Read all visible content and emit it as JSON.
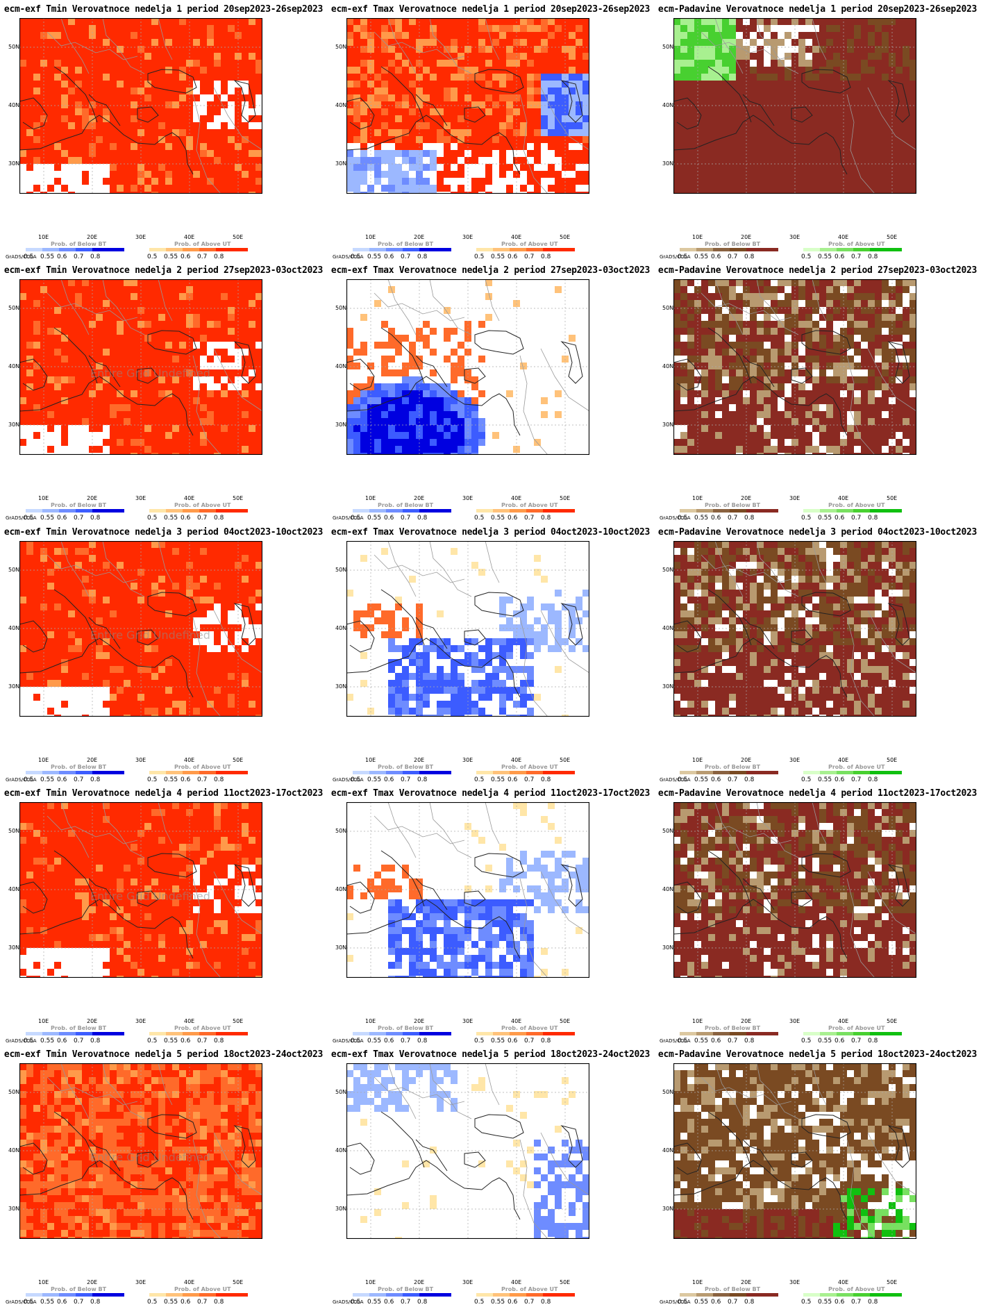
{
  "panels": [
    [
      {
        "title": "ecm-exf Tmin Verovatnoce nedelja 1 period 20sep2023-26sep2023",
        "variable": "tmin",
        "field": "warm",
        "undefined_note": ""
      },
      {
        "title": "ecm-exf Tmax Verovatnoce nedelja 1 period 20sep2023-26sep2023",
        "variable": "tmax",
        "field": "warm-mixed",
        "undefined_note": ""
      },
      {
        "title": "ecm-Padavine Verovatnoce nedelja 1 period 20sep2023-26sep2023",
        "variable": "precip",
        "field": "dry-wet-north",
        "undefined_note": ""
      }
    ],
    [
      {
        "title": "ecm-exf Tmin Verovatnoce nedelja 2 period 27sep2023-03oct2023",
        "variable": "tmin",
        "field": "warm",
        "undefined_note": "Entire Grid Undefined"
      },
      {
        "title": "ecm-exf Tmax Verovatnoce nedelja 2 period 27sep2023-03oct2023",
        "variable": "tmax",
        "field": "cold-south",
        "undefined_note": ""
      },
      {
        "title": "ecm-Padavine Verovatnoce nedelja 2 period 27sep2023-03oct2023",
        "variable": "precip",
        "field": "dry",
        "undefined_note": ""
      }
    ],
    [
      {
        "title": "ecm-exf Tmin Verovatnoce nedelja 3 period 04oct2023-10oct2023",
        "variable": "tmin",
        "field": "warm",
        "undefined_note": "Entire Grid Undefined"
      },
      {
        "title": "ecm-exf Tmax Verovatnoce nedelja 3 period 04oct2023-10oct2023",
        "variable": "tmax",
        "field": "cold-east",
        "undefined_note": ""
      },
      {
        "title": "ecm-Padavine Verovatnoce nedelja 3 period 04oct2023-10oct2023",
        "variable": "precip",
        "field": "dry",
        "undefined_note": ""
      }
    ],
    [
      {
        "title": "ecm-exf Tmin Verovatnoce nedelja 4 period 11oct2023-17oct2023",
        "variable": "tmin",
        "field": "warm",
        "undefined_note": "Entire Grid Undefined"
      },
      {
        "title": "ecm-exf Tmax Verovatnoce nedelja 4 period 11oct2023-17oct2023",
        "variable": "tmax",
        "field": "cold-east",
        "undefined_note": ""
      },
      {
        "title": "ecm-Padavine Verovatnoce nedelja 4 period 11oct2023-17oct2023",
        "variable": "precip",
        "field": "dry",
        "undefined_note": ""
      }
    ],
    [
      {
        "title": "ecm-exf Tmin Verovatnoce nedelja 5 period 18oct2023-24oct2023",
        "variable": "tmin",
        "field": "warm-orange",
        "undefined_note": "Entire Grid Undefined"
      },
      {
        "title": "ecm-exf Tmax Verovatnoce nedelja 5 period 18oct2023-24oct2023",
        "variable": "tmax",
        "field": "cold-north",
        "undefined_note": ""
      },
      {
        "title": "ecm-Padavine Verovatnoce nedelja 5 period 18oct2023-24oct2023",
        "variable": "precip",
        "field": "dry-wet-east",
        "undefined_note": ""
      }
    ]
  ],
  "axes": {
    "x_ticks": [
      "10E",
      "20E",
      "30E",
      "40E",
      "50E"
    ],
    "y_ticks": [
      "50N",
      "40N",
      "30N"
    ]
  },
  "colorbars": {
    "temp_below": {
      "label": "Prob. of Below BT",
      "ticks": [
        "0.5",
        "0.55",
        "0.6",
        "0.7",
        "0.8"
      ],
      "colors": [
        "#c6d9ff",
        "#9cb8ff",
        "#6e8cff",
        "#3c5cff",
        "#0000e0"
      ]
    },
    "temp_above": {
      "label": "Prob. of Above UT",
      "ticks": [
        "0.5",
        "0.55",
        "0.6",
        "0.7",
        "0.8"
      ],
      "colors": [
        "#ffe6a8",
        "#ffc27a",
        "#ff9a4a",
        "#ff6a2a",
        "#ff2a00"
      ]
    },
    "precip_below": {
      "label": "Prob. of Below BT",
      "ticks": [
        "0.5",
        "0.55",
        "0.6",
        "0.7",
        "0.8"
      ],
      "colors": [
        "#dcc8a0",
        "#b89a70",
        "#8a6240",
        "#7a4a22",
        "#8a2a22"
      ]
    },
    "precip_above": {
      "label": "Prob. of Above UT",
      "ticks": [
        "0.5",
        "0.55",
        "0.6",
        "0.7",
        "0.8"
      ],
      "colors": [
        "#d8ffc8",
        "#a8f090",
        "#78e060",
        "#48d030",
        "#10c010"
      ]
    }
  },
  "credit": "GrADS/COLA"
}
